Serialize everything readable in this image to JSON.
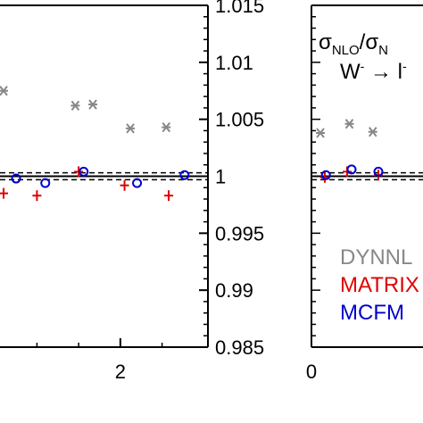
{
  "chart_data": [
    {
      "type": "scatter",
      "panel": "left",
      "xlim": [
        0.45,
        3.05
      ],
      "ylim": [
        0.985,
        1.015
      ],
      "yticks": [
        "1.015",
        "1.01",
        "1.005",
        "1",
        "0.995",
        "0.99",
        "0.985"
      ],
      "yticks_values": [
        1.015,
        1.01,
        1.005,
        1.0,
        0.995,
        0.99,
        0.985
      ],
      "xticks": [
        "2"
      ],
      "xticks_values": [
        2
      ],
      "reference_line": 1.0,
      "band": [
        0.9997,
        1.0003
      ],
      "series": [
        {
          "name": "DYNNLO",
          "color": "#888888",
          "marker": "asterisk",
          "x": [
            0.6,
            1.46,
            1.67,
            2.12,
            2.55
          ],
          "y": [
            1.0075,
            1.0062,
            1.0063,
            1.0042,
            1.0043
          ]
        },
        {
          "name": "MATRIX",
          "color": "#e00000",
          "marker": "plus",
          "x": [
            0.6,
            1.0,
            1.5,
            2.05,
            2.58
          ],
          "y": [
            0.9985,
            0.9983,
            1.0004,
            0.9992,
            0.9983
          ]
        },
        {
          "name": "MCFM",
          "color": "#0000cc",
          "marker": "circle",
          "x": [
            0.75,
            1.1,
            1.56,
            2.2,
            2.77
          ],
          "y": [
            0.9998,
            0.9994,
            1.0004,
            0.9994,
            1.0001
          ]
        }
      ]
    },
    {
      "type": "scatter",
      "panel": "right",
      "xlim": [
        0,
        1
      ],
      "ylim": [
        0.985,
        1.015
      ],
      "xticks": [
        "0"
      ],
      "xticks_values": [
        0
      ],
      "reference_line": 1.0,
      "band": [
        0.9997,
        1.0003
      ],
      "annotation_line1": {
        "main": "σ",
        "sub1": "NLO",
        "slash": "/σ",
        "sub2": "N"
      },
      "annotation_line2": {
        "w": "W",
        "wsup": "-",
        "arrow": " → l",
        "lsup": "-"
      },
      "legend": [
        "DYNNL",
        "MATRIX",
        "MCFM"
      ],
      "series": [
        {
          "name": "DYNNLO",
          "color": "#888888",
          "marker": "asterisk",
          "x": [
            0.08,
            0.34,
            0.55
          ],
          "y": [
            1.0038,
            1.0046,
            1.0039
          ]
        },
        {
          "name": "MATRIX",
          "color": "#e00000",
          "marker": "plus",
          "x": [
            0.12,
            0.32,
            0.6
          ],
          "y": [
            0.9999,
            1.0004,
            1.0001
          ]
        },
        {
          "name": "MCFM",
          "color": "#0000cc",
          "marker": "circle",
          "x": [
            0.13,
            0.36,
            0.6
          ],
          "y": [
            1.0001,
            1.0006,
            1.0004
          ]
        }
      ]
    }
  ]
}
